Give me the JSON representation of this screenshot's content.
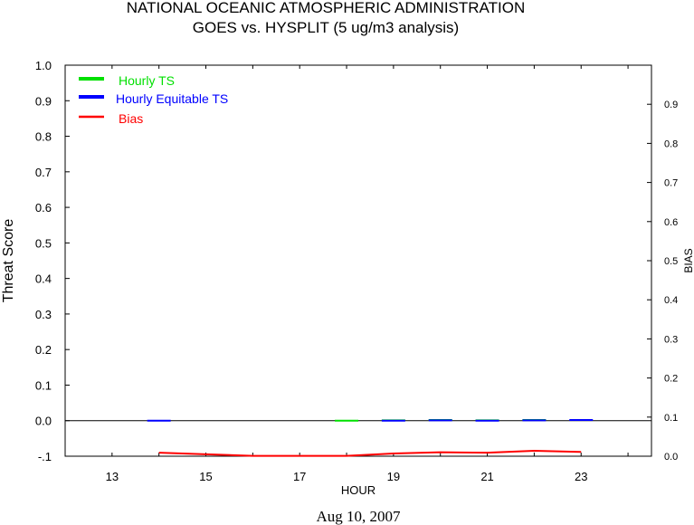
{
  "chart_data": {
    "type": "line",
    "title": "NATIONAL OCEANIC ATMOSPHERIC ADMINISTRATION",
    "subtitle": "GOES vs. HYSPLIT  (5 ug/m3 analysis)",
    "xlabel": "HOUR",
    "ylabel": "Threat Score",
    "ylabel_right": "BIAS",
    "date_label": "Aug 10, 2007",
    "xlim": [
      12,
      24.5
    ],
    "ylim": [
      -0.1,
      1.0
    ],
    "ylim_right": [
      0.0,
      1.0
    ],
    "x_ticks": [
      13,
      15,
      17,
      19,
      21,
      23
    ],
    "x_tick_labels": [
      "13",
      "15",
      "17",
      "19",
      "21",
      "23"
    ],
    "y_ticks": [
      -0.1,
      0.0,
      0.1,
      0.2,
      0.3,
      0.4,
      0.5,
      0.6,
      0.7,
      0.8,
      0.9,
      1.0
    ],
    "y_tick_labels": [
      "-.1",
      "0.0",
      "0.1",
      "0.2",
      "0.3",
      "0.4",
      "0.5",
      "0.6",
      "0.7",
      "0.8",
      "0.9",
      "1.0"
    ],
    "y_ticks_right": [
      0.0,
      0.1,
      0.2,
      0.3,
      0.4,
      0.5,
      0.6,
      0.7,
      0.8,
      0.9
    ],
    "y_tick_labels_right": [
      "0.0",
      "0.1",
      "0.2",
      "0.3",
      "0.4",
      "0.5",
      "0.6",
      "0.7",
      "0.8",
      "0.9"
    ],
    "zero_line": 0.0,
    "grid": false,
    "legend_placement": "top-left",
    "series": [
      {
        "name": "Hourly TS",
        "color": "#00e000",
        "axis": "left",
        "style": "marker",
        "x": [
          18,
          19,
          20,
          21,
          22
        ],
        "values": [
          0.0,
          0.001,
          0.002,
          0.001,
          0.002
        ]
      },
      {
        "name": "Hourly Equitable TS",
        "color": "#0000ff",
        "axis": "left",
        "style": "marker",
        "x": [
          14,
          19,
          20,
          21,
          22,
          23
        ],
        "values": [
          0.0,
          0.0,
          0.001,
          0.0,
          0.001,
          0.002
        ]
      },
      {
        "name": "Bias",
        "color": "#ff0000",
        "axis": "right",
        "style": "line",
        "x": [
          14,
          15,
          16,
          17,
          18,
          19,
          20,
          21,
          22,
          23
        ],
        "values": [
          0.009,
          0.005,
          0.001,
          0.001,
          0.001,
          0.007,
          0.01,
          0.009,
          0.014,
          0.011
        ]
      }
    ]
  }
}
